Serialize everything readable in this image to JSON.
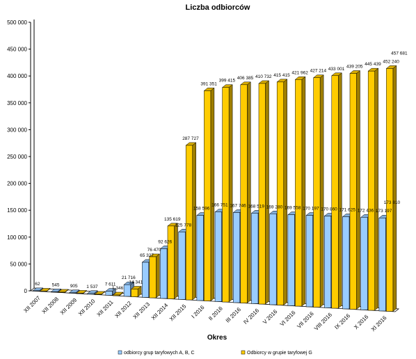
{
  "chart_data": {
    "type": "bar",
    "title": "Liczba odbiorców",
    "xlabel": "Okres",
    "ylabel": "",
    "ylim": [
      0,
      500000
    ],
    "yticks": [
      "0",
      "50 000",
      "100 000",
      "150 000",
      "200 000",
      "250 000",
      "300 000",
      "350 000",
      "400 000",
      "450 000",
      "500 000"
    ],
    "ytick_values": [
      0,
      50000,
      100000,
      150000,
      200000,
      250000,
      300000,
      350000,
      400000,
      450000,
      500000
    ],
    "grid": false,
    "legend_position": "bottom",
    "categories": [
      "XII 2007",
      "XII 2008",
      "XII 2009",
      "XII 2010",
      "XII 2011",
      "XII 2012",
      "XII 2013",
      "XII 2014",
      "XII 2015",
      "I 2016",
      "II 2016",
      "III 2016",
      "IV 2016",
      "V 2016",
      "VI 2016",
      "VII 2016",
      "VIII 2016",
      "IX 2016",
      "X 2016",
      "XI 2016"
    ],
    "series": [
      {
        "name": "odbiorcy grup taryfowych A, B, C",
        "color": "#99ccff",
        "values": [
          62,
          545,
          905,
          1537,
          7611,
          21716,
          65327,
          92626,
          125778,
          158596,
          166751,
          167746,
          168519,
          169280,
          169558,
          170197,
          170860,
          171625,
          172436,
          173197
        ],
        "labels": [
          "62",
          "545",
          "905",
          "1 537",
          "7 611",
          "21 716",
          "65 327",
          "92 626",
          "125 778",
          "158 596",
          "166 751",
          "167 746",
          "168 519",
          "169 280",
          "169 558",
          "170 197",
          "170 860",
          "171 625",
          "172 436",
          "173 197"
        ]
      },
      {
        "name": "Odbiorcy w grupie taryfowej G",
        "color": "#ffcc00",
        "values": [
          0,
          0,
          0,
          0,
          1346,
          14341,
          76470,
          135619,
          287727,
          391351,
          399415,
          406385,
          410732,
          415415,
          421962,
          427214,
          433001,
          439205,
          445439,
          452240
        ],
        "labels": [
          "",
          "",
          "",
          "",
          "1 346",
          "14 341",
          "76 470",
          "135 619",
          "287 727",
          "391 351",
          "399 415",
          "406 385",
          "410 732",
          "415 415",
          "421 962",
          "427 214",
          "433 001",
          "439 205",
          "445 439",
          "452 240"
        ]
      }
    ],
    "extra_labels": [
      {
        "text": "173 810",
        "series": 0
      },
      {
        "text": "457 681",
        "series": 1
      }
    ]
  }
}
